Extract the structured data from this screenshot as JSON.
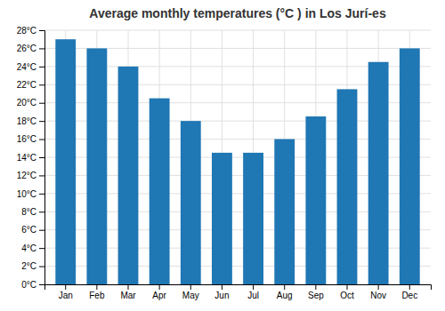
{
  "chart_data": {
    "type": "bar",
    "title": "Average monthly temperatures (°C ) in Los Jurí-es",
    "categories": [
      "Jan",
      "Feb",
      "Mar",
      "Apr",
      "May",
      "Jun",
      "Jul",
      "Aug",
      "Sep",
      "Oct",
      "Nov",
      "Dec"
    ],
    "values": [
      27.0,
      26.0,
      24.0,
      20.5,
      18.0,
      14.5,
      14.5,
      16.0,
      18.5,
      21.5,
      24.5,
      26.0
    ],
    "ylim": [
      0,
      28
    ],
    "yticks": [
      {
        "value": 0,
        "label": "0°C"
      },
      {
        "value": 2,
        "label": "2°C"
      },
      {
        "value": 4,
        "label": "4°C"
      },
      {
        "value": 6,
        "label": "6°C"
      },
      {
        "value": 8,
        "label": "8°C"
      },
      {
        "value": 10,
        "label": "10°C"
      },
      {
        "value": 12,
        "label": "12°C"
      },
      {
        "value": 14,
        "label": "14°C"
      },
      {
        "value": 16,
        "label": "16°C"
      },
      {
        "value": 18,
        "label": "18°C"
      },
      {
        "value": 20,
        "label": "20°C"
      },
      {
        "value": 22,
        "label": "22°C"
      },
      {
        "value": 24,
        "label": "24°C"
      },
      {
        "value": 26,
        "label": "26°C"
      },
      {
        "value": 28,
        "label": "28°C"
      }
    ],
    "grid": true
  }
}
